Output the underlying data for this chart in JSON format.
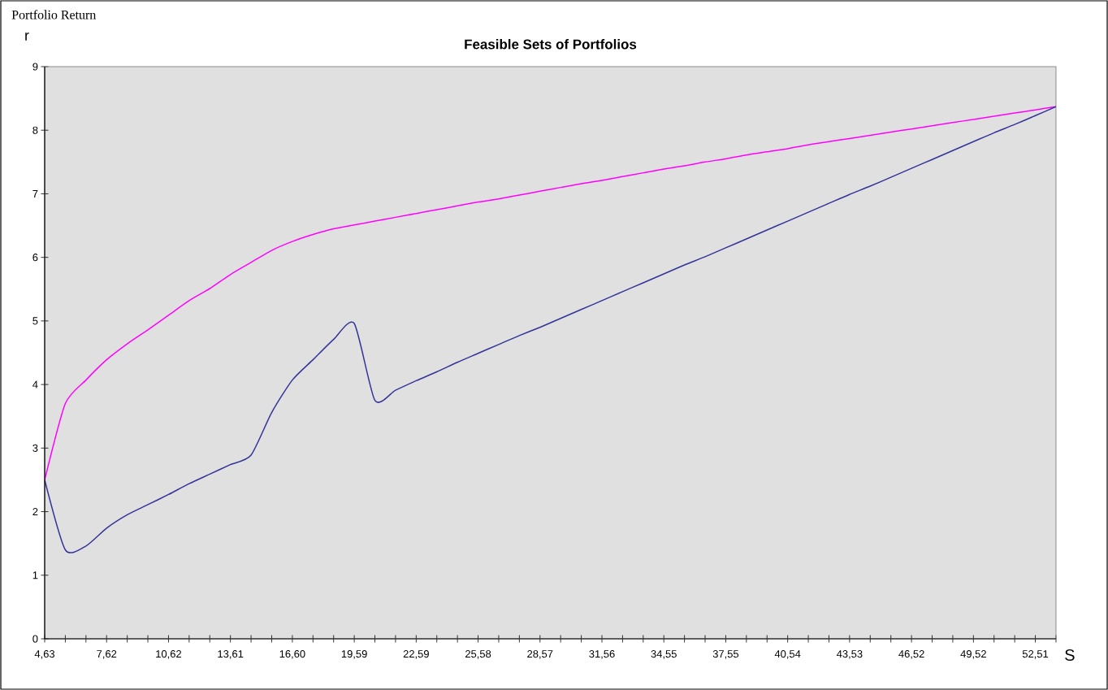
{
  "chart_data": {
    "type": "line",
    "title": "Feasible Sets of Portfolios",
    "xlabel": "S",
    "ylabel": "r",
    "annotations": [
      "Portfolio Return"
    ],
    "categories": [
      "4,63",
      null,
      null,
      "7,62",
      null,
      null,
      "10,62",
      null,
      null,
      "13,61",
      null,
      null,
      "16,60",
      null,
      null,
      "19,59",
      null,
      null,
      "22,59",
      null,
      null,
      "25,58",
      null,
      null,
      "28,57",
      null,
      null,
      "31,56",
      null,
      null,
      "34,55",
      null,
      null,
      "37,55",
      null,
      null,
      "40,54",
      null,
      null,
      "43,53",
      null,
      null,
      "46,52",
      null,
      null,
      "49,52",
      null,
      null,
      "52,51",
      null
    ],
    "series": [
      {
        "color": "#ff00ff",
        "values": [
          2.5,
          3.7,
          4.07,
          4.39,
          4.64,
          4.86,
          5.09,
          5.32,
          5.51,
          5.73,
          5.92,
          6.11,
          6.25,
          6.36,
          6.45,
          6.51,
          6.57,
          6.63,
          6.69,
          6.75,
          6.81,
          6.87,
          6.92,
          6.98,
          7.04,
          7.1,
          7.16,
          7.21,
          7.27,
          7.33,
          7.39,
          7.44,
          7.5,
          7.55,
          7.61,
          7.66,
          7.71,
          7.77,
          7.82,
          7.87,
          7.92,
          7.97,
          8.02,
          8.07,
          8.12,
          8.17,
          8.22,
          8.27,
          8.32,
          8.37
        ]
      },
      {
        "color": "#333399",
        "values": [
          2.5,
          1.4,
          1.46,
          1.74,
          1.95,
          2.11,
          2.27,
          2.44,
          2.59,
          2.74,
          2.89,
          3.56,
          4.07,
          4.39,
          4.71,
          4.96,
          3.75,
          3.91,
          4.06,
          4.2,
          4.35,
          4.49,
          4.63,
          4.77,
          4.9,
          5.04,
          5.18,
          5.32,
          5.46,
          5.6,
          5.74,
          5.88,
          6.01,
          6.15,
          6.29,
          6.43,
          6.57,
          6.71,
          6.85,
          6.99,
          7.12,
          7.26,
          7.4,
          7.54,
          7.68,
          7.82,
          7.96,
          8.09,
          8.23,
          8.37
        ]
      }
    ],
    "ylim": [
      0,
      9
    ],
    "yticks": [
      0,
      1,
      2,
      3,
      4,
      5,
      6,
      7,
      8,
      9
    ],
    "grid": false,
    "marker": "none",
    "line_style": "solid"
  }
}
